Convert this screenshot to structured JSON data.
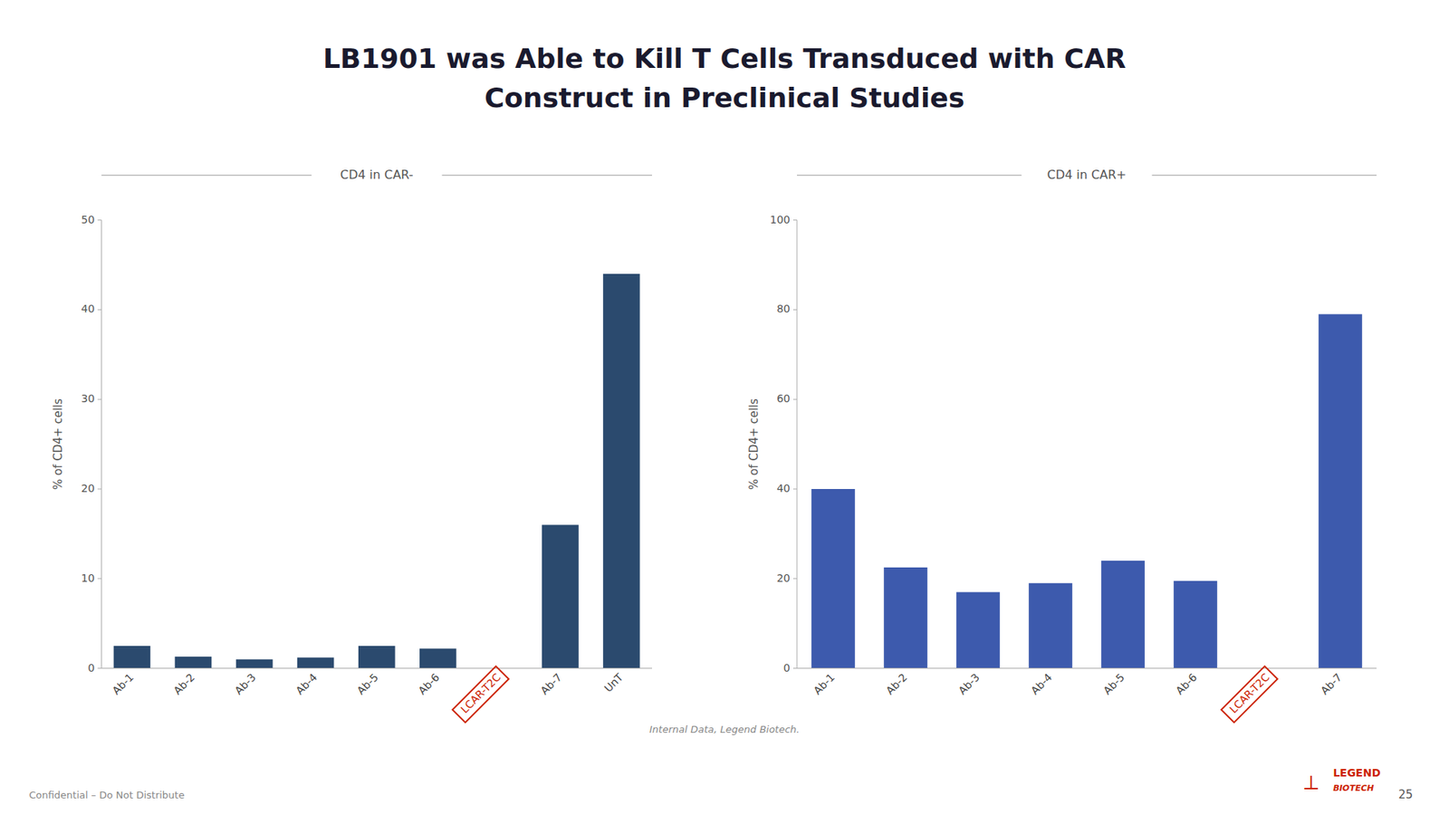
{
  "title": [
    "LB1901 was Able to Kill T Cells Transduced with CAR",
    "Construct in Preclinical Studies"
  ],
  "chart_data": [
    {
      "type": "bar",
      "subtitle": "CD4 in CAR-",
      "categories": [
        "Ab-1",
        "Ab-2",
        "Ab-3",
        "Ab-4",
        "Ab-5",
        "Ab-6",
        "LCAR-T2C",
        "Ab-7",
        "UnT"
      ],
      "values": [
        2.5,
        1.3,
        1.0,
        1.2,
        2.5,
        2.2,
        null,
        16.0,
        44.0
      ],
      "color": "#2b4a6e",
      "ylabel": "% of CD4+ cells",
      "ylim": [
        0,
        50
      ],
      "yticks": [
        0,
        10,
        20,
        30,
        40,
        50
      ],
      "grid": false
    },
    {
      "type": "bar",
      "subtitle": "CD4 in CAR+",
      "categories": [
        "Ab-1",
        "Ab-2",
        "Ab-3",
        "Ab-4",
        "Ab-5",
        "Ab-6",
        "LCAR-T2C",
        "Ab-7"
      ],
      "values": [
        40.0,
        22.5,
        17.0,
        19.0,
        24.0,
        19.5,
        null,
        79.0
      ],
      "color": "#3d5aad",
      "ylabel": "% of CD4+ cells",
      "ylim": [
        0,
        100
      ],
      "yticks": [
        0,
        20,
        40,
        60,
        80,
        100
      ],
      "grid": false
    }
  ],
  "footnote": "Internal Data, Legend Biotech.",
  "annotations": [
    "Confidential – Do Not Distribute",
    "25",
    "LEGEND",
    "BIOTECH",
    "⟂"
  ]
}
